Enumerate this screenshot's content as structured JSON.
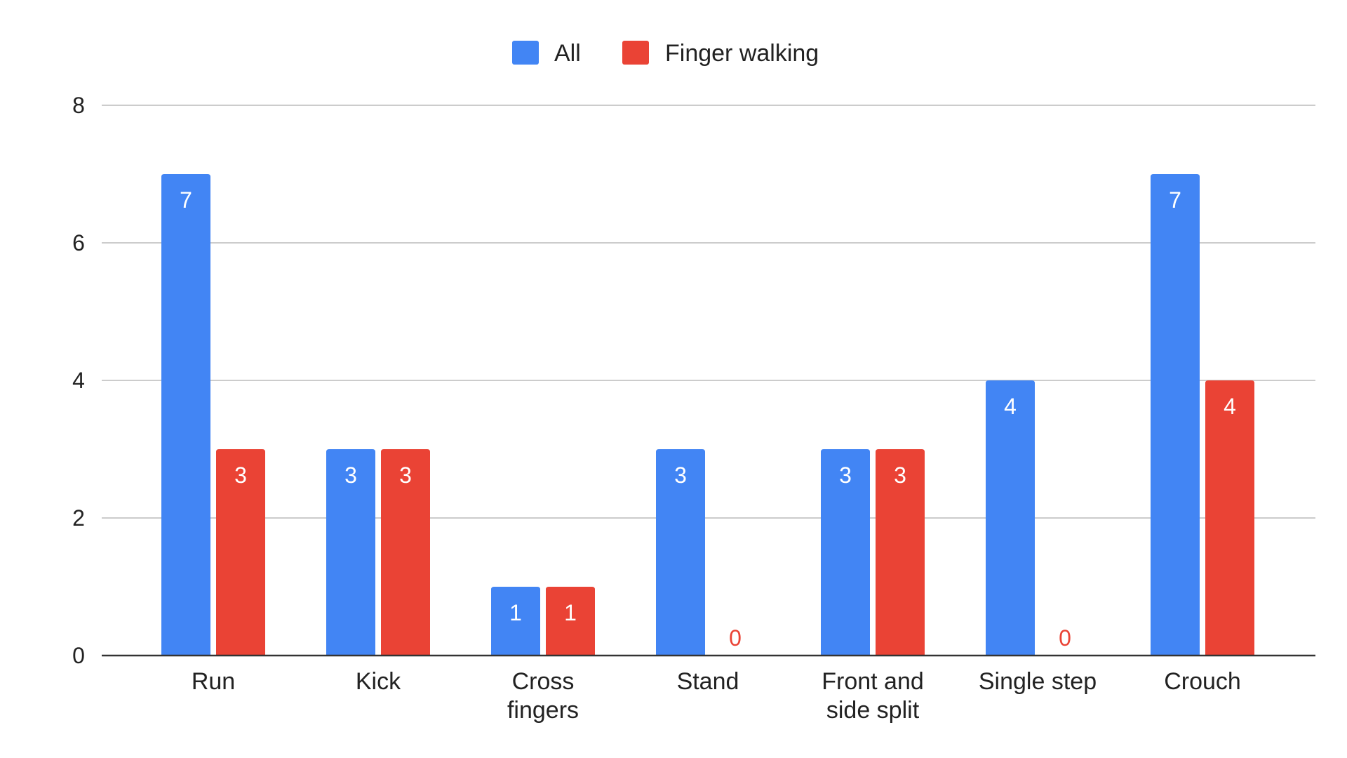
{
  "chart_data": {
    "type": "bar",
    "title": "",
    "xlabel": "",
    "ylabel": "",
    "ylim": [
      0,
      8
    ],
    "yticks": [
      0,
      2,
      4,
      6,
      8
    ],
    "grid": true,
    "legend_position": "top-center",
    "categories": [
      [
        "Run"
      ],
      [
        "Kick"
      ],
      [
        "Cross",
        "fingers"
      ],
      [
        "Stand"
      ],
      [
        "Front and",
        "side split"
      ],
      [
        "Single step"
      ],
      [
        "Crouch"
      ]
    ],
    "series": [
      {
        "name": "All",
        "color": "#4285f4",
        "values": [
          7,
          3,
          1,
          3,
          3,
          4,
          7
        ]
      },
      {
        "name": "Finger walking",
        "color": "#ea4335",
        "values": [
          3,
          3,
          1,
          0,
          3,
          0,
          4
        ]
      }
    ],
    "data_labels": true
  }
}
